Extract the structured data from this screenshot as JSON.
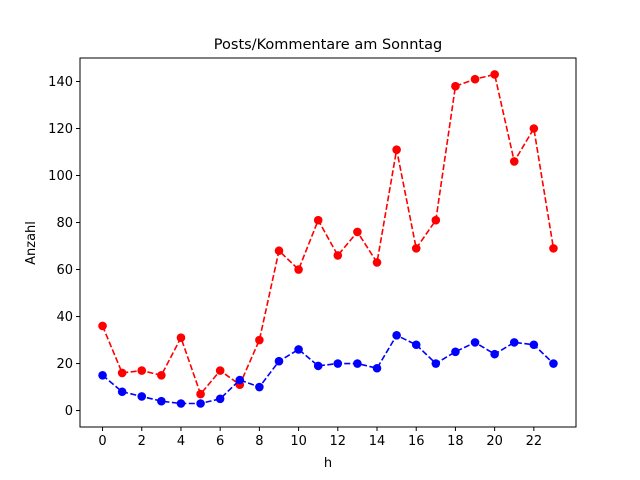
{
  "chart_data": {
    "type": "line",
    "title": "Posts/Kommentare am Sonntag",
    "xlabel": "h",
    "ylabel": "Anzahl",
    "xlim": [
      -1.15,
      24.15
    ],
    "ylim": [
      -7,
      150
    ],
    "xticks": [
      0,
      2,
      4,
      6,
      8,
      10,
      12,
      14,
      16,
      18,
      20,
      22
    ],
    "yticks": [
      0,
      20,
      40,
      60,
      80,
      100,
      120,
      140
    ],
    "grid": false,
    "x": [
      0,
      1,
      2,
      3,
      4,
      5,
      6,
      7,
      8,
      9,
      10,
      11,
      12,
      13,
      14,
      15,
      16,
      17,
      18,
      19,
      20,
      21,
      22,
      23
    ],
    "series": [
      {
        "color": "#ff0000",
        "linestyle": "dashed",
        "marker": "circle",
        "values": [
          36,
          16,
          17,
          15,
          31,
          7,
          17,
          11,
          30,
          68,
          60,
          81,
          66,
          76,
          63,
          111,
          69,
          81,
          138,
          141,
          143,
          106,
          120,
          69
        ]
      },
      {
        "color": "#0000ff",
        "linestyle": "dashed",
        "marker": "circle",
        "values": [
          15,
          8,
          6,
          4,
          3,
          3,
          5,
          13,
          10,
          21,
          26,
          19,
          20,
          20,
          18,
          32,
          28,
          20,
          25,
          29,
          24,
          29,
          28,
          20
        ]
      }
    ]
  }
}
